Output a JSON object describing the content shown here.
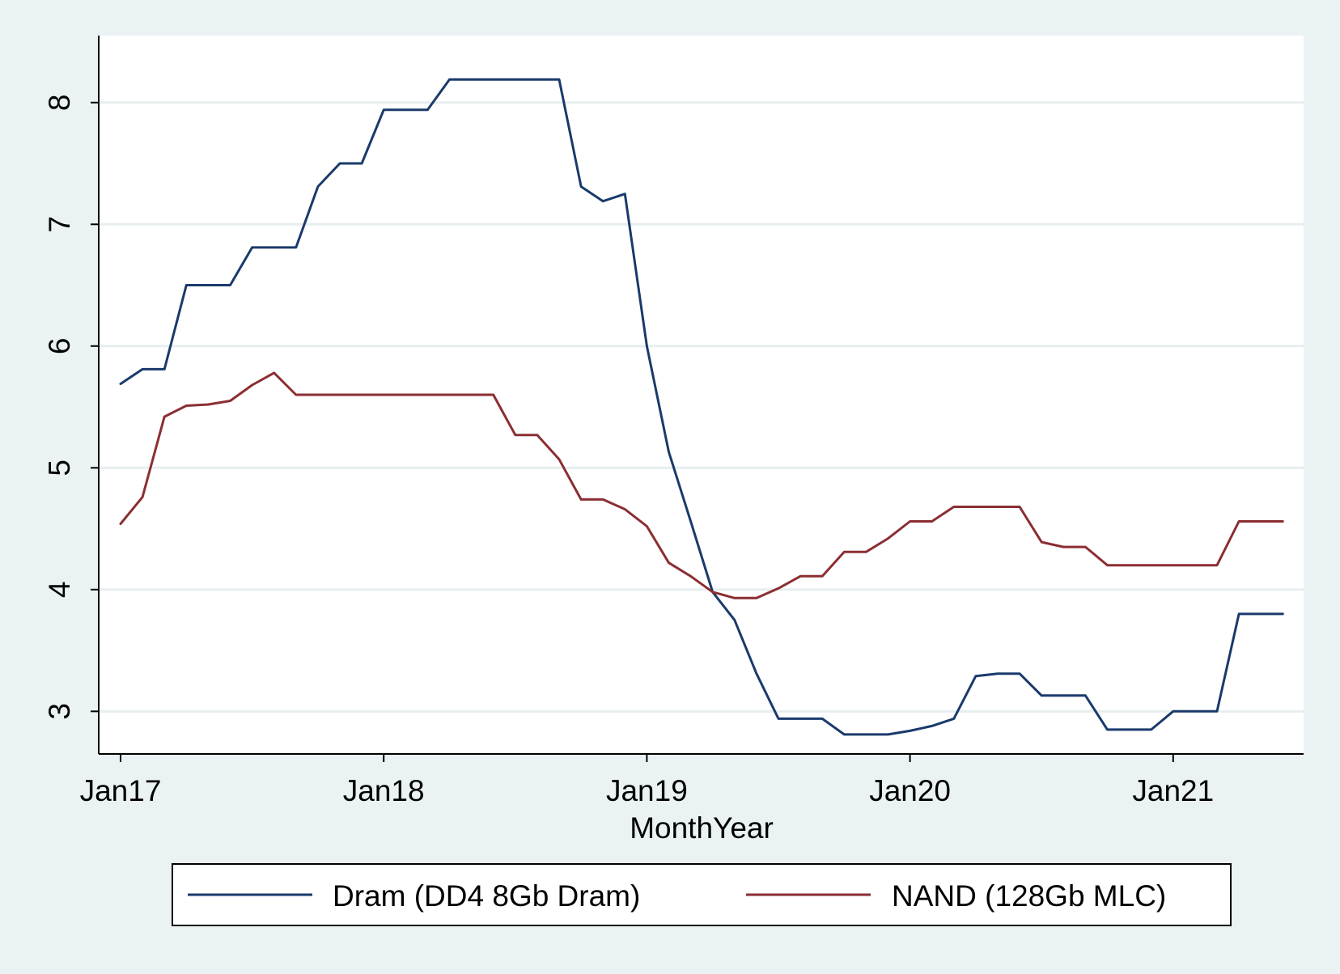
{
  "chart_data": {
    "type": "line",
    "title": "",
    "xlabel": "MonthYear",
    "ylabel": "",
    "x_ticks": [
      "Jan17",
      "Jan18",
      "Jan19",
      "Jan20",
      "Jan21"
    ],
    "y_ticks": [
      3,
      4,
      5,
      6,
      7,
      8
    ],
    "xlim": [
      "2017-01",
      "2021-07"
    ],
    "ylim": [
      2.65,
      8.55
    ],
    "grid": true,
    "legend_position": "bottom",
    "x": [
      "2017-01",
      "2017-02",
      "2017-03",
      "2017-04",
      "2017-05",
      "2017-06",
      "2017-07",
      "2017-08",
      "2017-09",
      "2017-10",
      "2017-11",
      "2017-12",
      "2018-01",
      "2018-02",
      "2018-03",
      "2018-04",
      "2018-05",
      "2018-06",
      "2018-07",
      "2018-08",
      "2018-09",
      "2018-10",
      "2018-11",
      "2018-12",
      "2019-01",
      "2019-02",
      "2019-03",
      "2019-04",
      "2019-05",
      "2019-06",
      "2019-07",
      "2019-08",
      "2019-09",
      "2019-10",
      "2019-11",
      "2019-12",
      "2020-01",
      "2020-02",
      "2020-03",
      "2020-04",
      "2020-05",
      "2020-06",
      "2020-07",
      "2020-08",
      "2020-09",
      "2020-10",
      "2020-11",
      "2020-12",
      "2021-01",
      "2021-02",
      "2021-03",
      "2021-04",
      "2021-05",
      "2021-06"
    ],
    "series": [
      {
        "name": "Dram (DD4 8Gb Dram)",
        "color": "#1a3a6b",
        "values": [
          5.69,
          5.81,
          5.81,
          6.5,
          6.5,
          6.5,
          6.81,
          6.81,
          6.81,
          7.31,
          7.5,
          7.5,
          7.94,
          7.94,
          7.94,
          8.19,
          8.19,
          8.19,
          8.19,
          8.19,
          8.19,
          7.31,
          7.19,
          7.25,
          6.0,
          5.13,
          4.56,
          3.98,
          3.75,
          3.31,
          2.94,
          2.94,
          2.94,
          2.81,
          2.81,
          2.81,
          2.84,
          2.88,
          2.94,
          3.29,
          3.31,
          3.31,
          3.13,
          3.13,
          3.13,
          2.85,
          2.85,
          2.85,
          3.0,
          3.0,
          3.0,
          3.8,
          3.8,
          3.8
        ]
      },
      {
        "name": "NAND (128Gb MLC)",
        "color": "#8b2e32",
        "values": [
          4.54,
          4.76,
          5.42,
          5.51,
          5.52,
          5.55,
          5.68,
          5.78,
          5.6,
          5.6,
          5.6,
          5.6,
          5.6,
          5.6,
          5.6,
          5.6,
          5.6,
          5.6,
          5.27,
          5.27,
          5.07,
          4.74,
          4.74,
          4.66,
          4.52,
          4.22,
          4.11,
          3.98,
          3.93,
          3.93,
          4.01,
          4.11,
          4.11,
          4.31,
          4.31,
          4.42,
          4.56,
          4.56,
          4.68,
          4.68,
          4.68,
          4.68,
          4.39,
          4.35,
          4.35,
          4.2,
          4.2,
          4.2,
          4.2,
          4.2,
          4.2,
          4.56,
          4.56,
          4.56
        ]
      }
    ]
  }
}
